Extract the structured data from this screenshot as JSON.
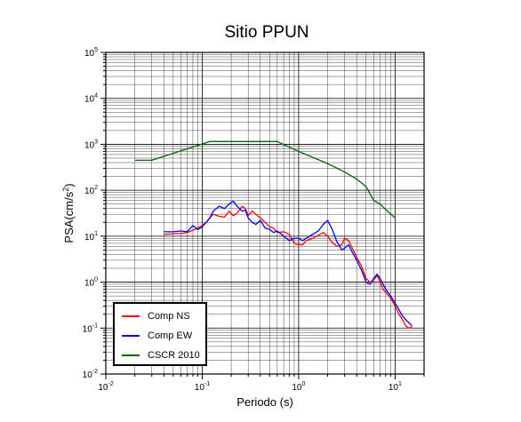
{
  "chart_data": {
    "type": "line",
    "title": "Sitio PPUN",
    "xlabel": "Periodo (s)",
    "ylabel": {
      "text": "PSA(cm/s",
      "sup": "2",
      "close": ")"
    },
    "xscale": "log",
    "yscale": "log",
    "xlim": [
      0.01,
      20
    ],
    "ylim": [
      0.01,
      100000
    ],
    "grid": true,
    "legend_position": "bottom-left",
    "x_ticks": [
      {
        "base": "10",
        "exp": "-2"
      },
      {
        "base": "10",
        "exp": "-1"
      },
      {
        "base": "10",
        "exp": "0"
      },
      {
        "base": "10",
        "exp": "1"
      }
    ],
    "x_tick_values": [
      0.01,
      0.1,
      1,
      10
    ],
    "y_ticks": [
      {
        "base": "10",
        "exp": "-2"
      },
      {
        "base": "10",
        "exp": "-1"
      },
      {
        "base": "10",
        "exp": "0"
      },
      {
        "base": "10",
        "exp": "1"
      },
      {
        "base": "10",
        "exp": "2"
      },
      {
        "base": "10",
        "exp": "3"
      },
      {
        "base": "10",
        "exp": "4"
      },
      {
        "base": "10",
        "exp": "5"
      }
    ],
    "y_tick_values": [
      0.01,
      0.1,
      1,
      10,
      100,
      1000,
      10000,
      100000
    ],
    "series": [
      {
        "name": "Comp NS",
        "color": "#ff0000",
        "points": [
          [
            0.04,
            11
          ],
          [
            0.05,
            11.3
          ],
          [
            0.06,
            11.5
          ],
          [
            0.07,
            12
          ],
          [
            0.08,
            13.5
          ],
          [
            0.09,
            15
          ],
          [
            0.1,
            17
          ],
          [
            0.11,
            20
          ],
          [
            0.12,
            25
          ],
          [
            0.13,
            30
          ],
          [
            0.15,
            27
          ],
          [
            0.17,
            26
          ],
          [
            0.19,
            35
          ],
          [
            0.21,
            28
          ],
          [
            0.23,
            32
          ],
          [
            0.26,
            45
          ],
          [
            0.28,
            40
          ],
          [
            0.3,
            28
          ],
          [
            0.33,
            35
          ],
          [
            0.36,
            30
          ],
          [
            0.4,
            25
          ],
          [
            0.45,
            20
          ],
          [
            0.5,
            16
          ],
          [
            0.55,
            15
          ],
          [
            0.6,
            12
          ],
          [
            0.7,
            12.5
          ],
          [
            0.8,
            11
          ],
          [
            0.9,
            7
          ],
          [
            1.0,
            6.5
          ],
          [
            1.1,
            6.5
          ],
          [
            1.2,
            8
          ],
          [
            1.4,
            9
          ],
          [
            1.6,
            10.5
          ],
          [
            1.8,
            12
          ],
          [
            2.0,
            10
          ],
          [
            2.2,
            7.5
          ],
          [
            2.5,
            6
          ],
          [
            2.8,
            6.5
          ],
          [
            3.0,
            9
          ],
          [
            3.3,
            8
          ],
          [
            3.6,
            5.5
          ],
          [
            4.0,
            3.5
          ],
          [
            4.5,
            2.2
          ],
          [
            5.0,
            1.2
          ],
          [
            5.5,
            1.0
          ],
          [
            6.0,
            1.1
          ],
          [
            6.5,
            1.4
          ],
          [
            7.0,
            1.0
          ],
          [
            7.5,
            0.7
          ],
          [
            8.0,
            0.6
          ],
          [
            9.0,
            0.45
          ],
          [
            10.0,
            0.3
          ],
          [
            11.0,
            0.2
          ],
          [
            12.0,
            0.15
          ],
          [
            13.0,
            0.11
          ],
          [
            14.0,
            0.1
          ],
          [
            15.0,
            0.105
          ]
        ]
      },
      {
        "name": "Comp EW",
        "color": "#0000ff",
        "points": [
          [
            0.04,
            12.5
          ],
          [
            0.05,
            12.5
          ],
          [
            0.06,
            13
          ],
          [
            0.07,
            12.5
          ],
          [
            0.08,
            17
          ],
          [
            0.09,
            14
          ],
          [
            0.1,
            16
          ],
          [
            0.11,
            20
          ],
          [
            0.12,
            25
          ],
          [
            0.13,
            35
          ],
          [
            0.15,
            45
          ],
          [
            0.17,
            40
          ],
          [
            0.19,
            50
          ],
          [
            0.21,
            58
          ],
          [
            0.23,
            45
          ],
          [
            0.26,
            35
          ],
          [
            0.28,
            37
          ],
          [
            0.3,
            25
          ],
          [
            0.33,
            20
          ],
          [
            0.36,
            18
          ],
          [
            0.4,
            22
          ],
          [
            0.45,
            15
          ],
          [
            0.5,
            14
          ],
          [
            0.55,
            12
          ],
          [
            0.6,
            13
          ],
          [
            0.7,
            10
          ],
          [
            0.8,
            8
          ],
          [
            0.9,
            9
          ],
          [
            1.0,
            9
          ],
          [
            1.1,
            8
          ],
          [
            1.2,
            9
          ],
          [
            1.4,
            11
          ],
          [
            1.6,
            13
          ],
          [
            1.8,
            18
          ],
          [
            2.0,
            22
          ],
          [
            2.2,
            15
          ],
          [
            2.5,
            7.5
          ],
          [
            2.8,
            5
          ],
          [
            3.0,
            5.5
          ],
          [
            3.3,
            6.5
          ],
          [
            3.6,
            4.5
          ],
          [
            4.0,
            3
          ],
          [
            4.5,
            1.8
          ],
          [
            5.0,
            1.0
          ],
          [
            5.5,
            0.9
          ],
          [
            6.0,
            1.2
          ],
          [
            6.5,
            1.5
          ],
          [
            7.0,
            1.2
          ],
          [
            7.5,
            0.9
          ],
          [
            8.0,
            0.7
          ],
          [
            9.0,
            0.5
          ],
          [
            10.0,
            0.35
          ],
          [
            11.0,
            0.25
          ],
          [
            12.0,
            0.18
          ],
          [
            13.0,
            0.15
          ],
          [
            14.0,
            0.13
          ],
          [
            15.0,
            0.11
          ]
        ]
      },
      {
        "name": "CSCR 2010",
        "color": "#006600",
        "points": [
          [
            0.02,
            450
          ],
          [
            0.03,
            450
          ],
          [
            0.12,
            1150
          ],
          [
            0.6,
            1150
          ],
          [
            1.0,
            700
          ],
          [
            2.0,
            380
          ],
          [
            3.0,
            250
          ],
          [
            4.0,
            175
          ],
          [
            5.0,
            120
          ],
          [
            6.0,
            60
          ],
          [
            7.0,
            50
          ],
          [
            8.0,
            38
          ],
          [
            10.0,
            25
          ]
        ]
      }
    ]
  }
}
